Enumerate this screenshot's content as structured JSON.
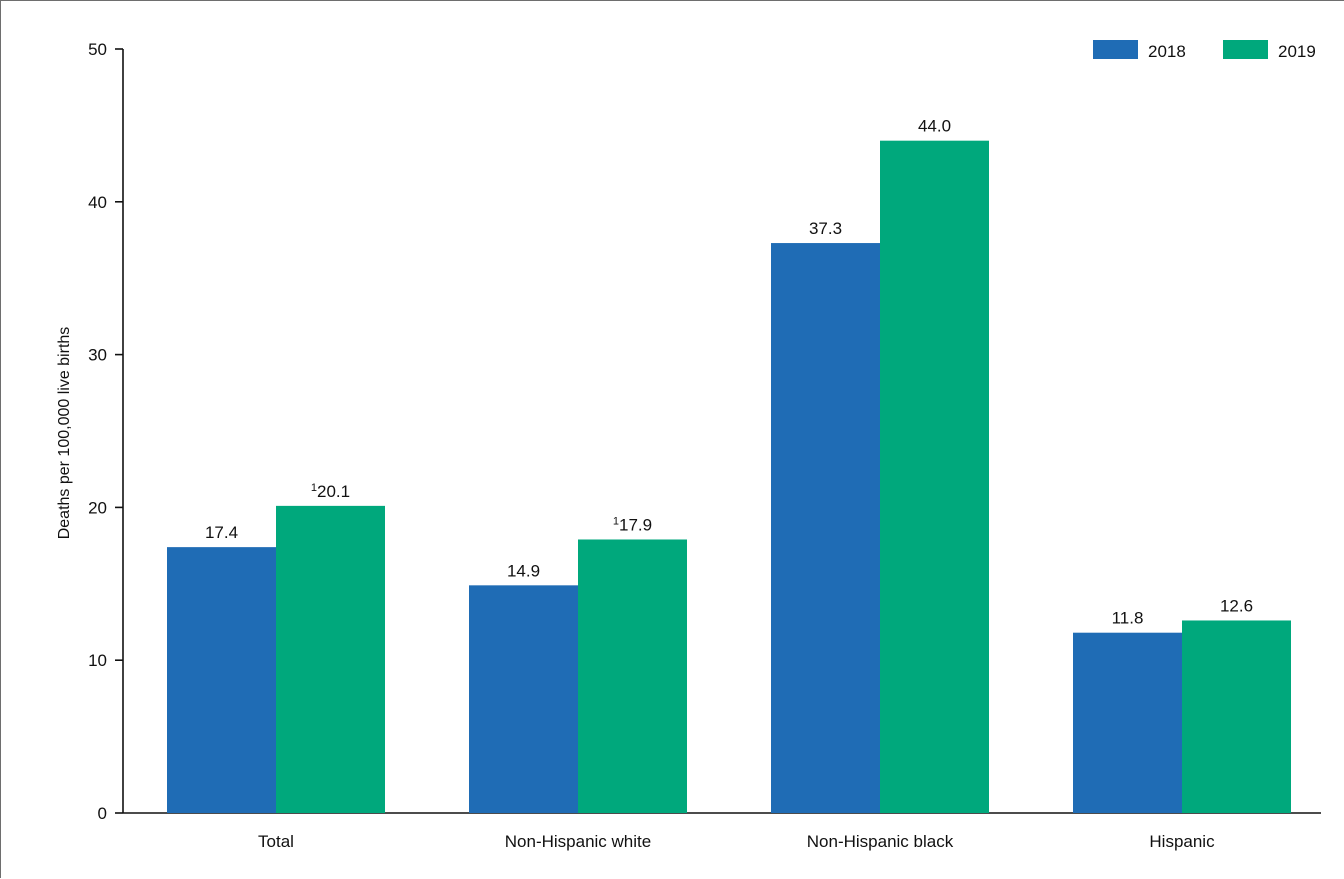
{
  "chart_data": {
    "type": "bar",
    "categories": [
      "Total",
      "Non-Hispanic white",
      "Non-Hispanic black",
      "Hispanic"
    ],
    "series": [
      {
        "name": "2018",
        "color": "#1f6cb5",
        "values": [
          17.4,
          14.9,
          37.3,
          11.8
        ],
        "labels": [
          "17.4",
          "14.9",
          "37.3",
          "11.8"
        ],
        "label_notes": [
          "",
          "",
          "",
          ""
        ]
      },
      {
        "name": "2019",
        "color": "#00a87c",
        "values": [
          20.1,
          17.9,
          44.0,
          12.6
        ],
        "labels": [
          "20.1",
          "17.9",
          "44.0",
          "12.6"
        ],
        "label_notes": [
          "1",
          "1",
          "",
          ""
        ]
      }
    ],
    "ylabel": "Deaths per 100,000 live births",
    "xlabel": "",
    "ylim": [
      0,
      50
    ],
    "yticks": [
      0,
      10,
      20,
      30,
      40,
      50
    ],
    "grid": false,
    "legend_position": "top-right"
  }
}
